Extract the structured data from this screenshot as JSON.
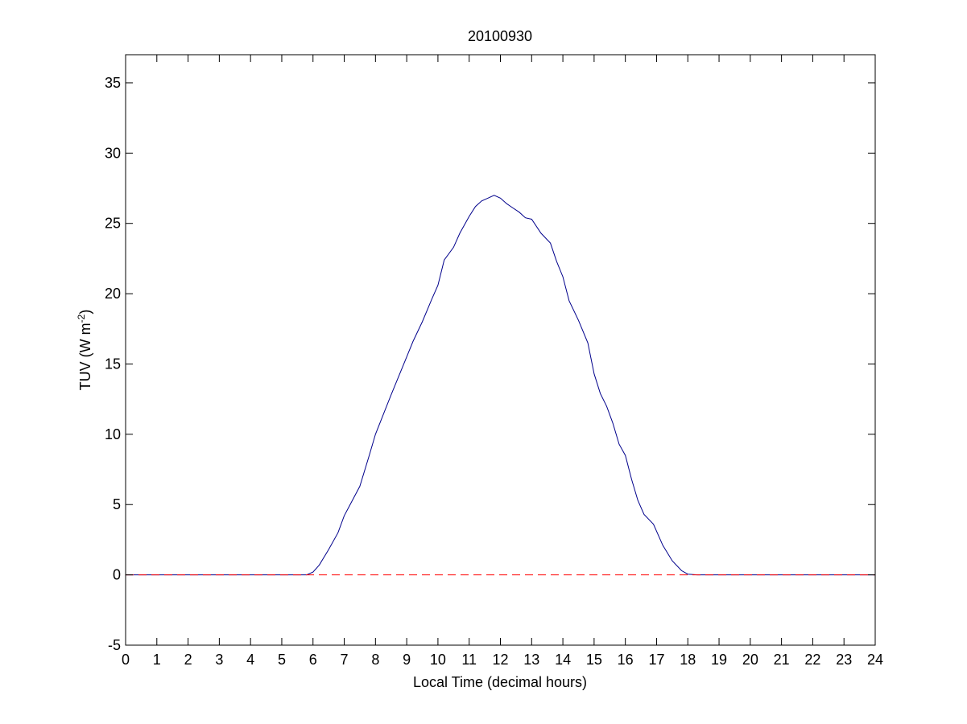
{
  "chart_data": {
    "type": "line",
    "title": "20100930",
    "xlabel": "Local Time (decimal hours)",
    "ylabel": "TUV (W m-2)",
    "ylabel_parts": {
      "main": "TUV (W m",
      "sup": "-2",
      "close": ")"
    },
    "xlim": [
      0,
      24
    ],
    "ylim": [
      -5,
      37
    ],
    "xticks": [
      0,
      1,
      2,
      3,
      4,
      5,
      6,
      7,
      8,
      9,
      10,
      11,
      12,
      13,
      14,
      15,
      16,
      17,
      18,
      19,
      20,
      21,
      22,
      23,
      24
    ],
    "yticks": [
      -5,
      0,
      5,
      10,
      15,
      20,
      25,
      30,
      35
    ],
    "grid": false,
    "series": [
      {
        "color": "#00008b",
        "style": "solid",
        "x": [
          0,
          5.8,
          6.0,
          6.2,
          6.5,
          6.8,
          7.0,
          7.5,
          7.8,
          8.0,
          8.5,
          9.0,
          9.2,
          9.5,
          9.8,
          10.0,
          10.2,
          10.5,
          10.7,
          11.0,
          11.2,
          11.4,
          11.6,
          11.8,
          12.0,
          12.2,
          12.4,
          12.6,
          12.8,
          13.0,
          13.3,
          13.6,
          13.8,
          14.0,
          14.2,
          14.5,
          14.8,
          15.0,
          15.2,
          15.4,
          15.6,
          15.8,
          16.0,
          16.2,
          16.4,
          16.6,
          16.9,
          17.2,
          17.5,
          17.8,
          18.0,
          18.3,
          24
        ],
        "y": [
          0,
          0,
          0.2,
          0.7,
          1.8,
          3.0,
          4.2,
          6.3,
          8.5,
          10.0,
          12.8,
          15.5,
          16.6,
          18.0,
          19.6,
          20.6,
          22.4,
          23.3,
          24.3,
          25.5,
          26.2,
          26.6,
          26.8,
          27.0,
          26.8,
          26.4,
          26.1,
          25.8,
          25.4,
          25.3,
          24.3,
          23.6,
          22.3,
          21.2,
          19.5,
          18.1,
          16.5,
          14.3,
          12.9,
          12.0,
          10.8,
          9.3,
          8.5,
          6.8,
          5.3,
          4.3,
          3.6,
          2.1,
          1.0,
          0.3,
          0.05,
          0,
          0
        ]
      },
      {
        "color": "#ff0000",
        "style": "dashed",
        "x": [
          0,
          24
        ],
        "y": [
          0,
          0
        ]
      }
    ]
  }
}
